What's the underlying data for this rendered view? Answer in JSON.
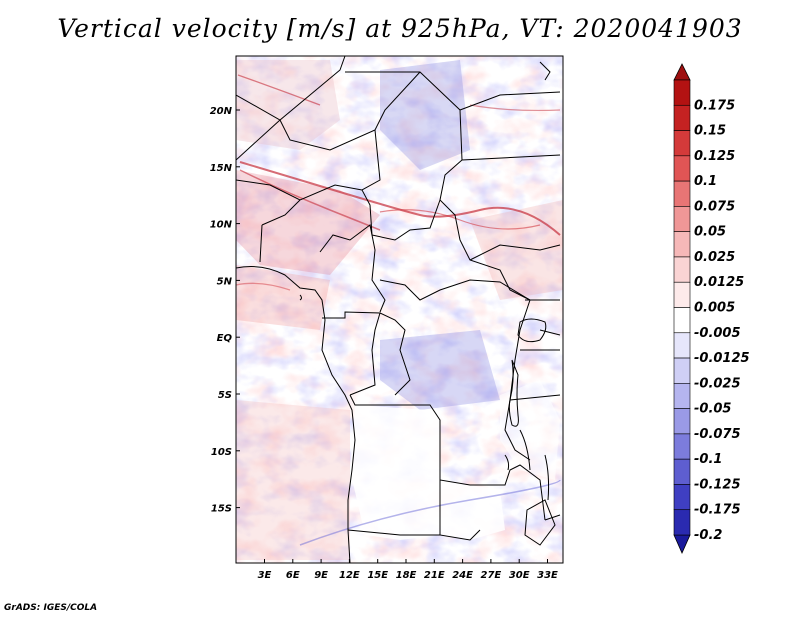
{
  "title": "Vertical velocity [m/s] at 925hPa, VT: 2020041903",
  "footer": "GrADS: IGES/COLA",
  "map": {
    "region": "Central Africa",
    "lon_labels": [
      "3E",
      "6E",
      "9E",
      "12E",
      "15E",
      "18E",
      "21E",
      "24E",
      "27E",
      "30E",
      "33E"
    ],
    "lat_labels": [
      "20N",
      "15N",
      "10N",
      "5N",
      "EQ",
      "5S",
      "10S",
      "15S"
    ]
  },
  "colorbar": {
    "levels": [
      {
        "label": "0.175",
        "color": "#b31212"
      },
      {
        "label": "0.15",
        "color": "#c42222"
      },
      {
        "label": "0.125",
        "color": "#d43a3a"
      },
      {
        "label": "0.1",
        "color": "#e05555"
      },
      {
        "label": "0.075",
        "color": "#e87575"
      },
      {
        "label": "0.05",
        "color": "#f09797"
      },
      {
        "label": "0.025",
        "color": "#f6b8b8"
      },
      {
        "label": "0.0125",
        "color": "#fad4d4"
      },
      {
        "label": "0.005",
        "color": "#fdeaea"
      },
      {
        "label": "-0.005",
        "color": "#ffffff"
      },
      {
        "label": "-0.0125",
        "color": "#e6e6fb"
      },
      {
        "label": "-0.025",
        "color": "#cfcff5"
      },
      {
        "label": "-0.05",
        "color": "#b5b5ef"
      },
      {
        "label": "-0.075",
        "color": "#9a9ae6"
      },
      {
        "label": "-0.1",
        "color": "#7c7cdc"
      },
      {
        "label": "-0.125",
        "color": "#5e5ed0"
      },
      {
        "label": "-0.175",
        "color": "#3f3fc2"
      },
      {
        "label": "-0.2",
        "color": "#2a2ab0"
      }
    ],
    "top_cap_color": "#9e1010",
    "bottom_cap_color": "#1a1a9c"
  }
}
